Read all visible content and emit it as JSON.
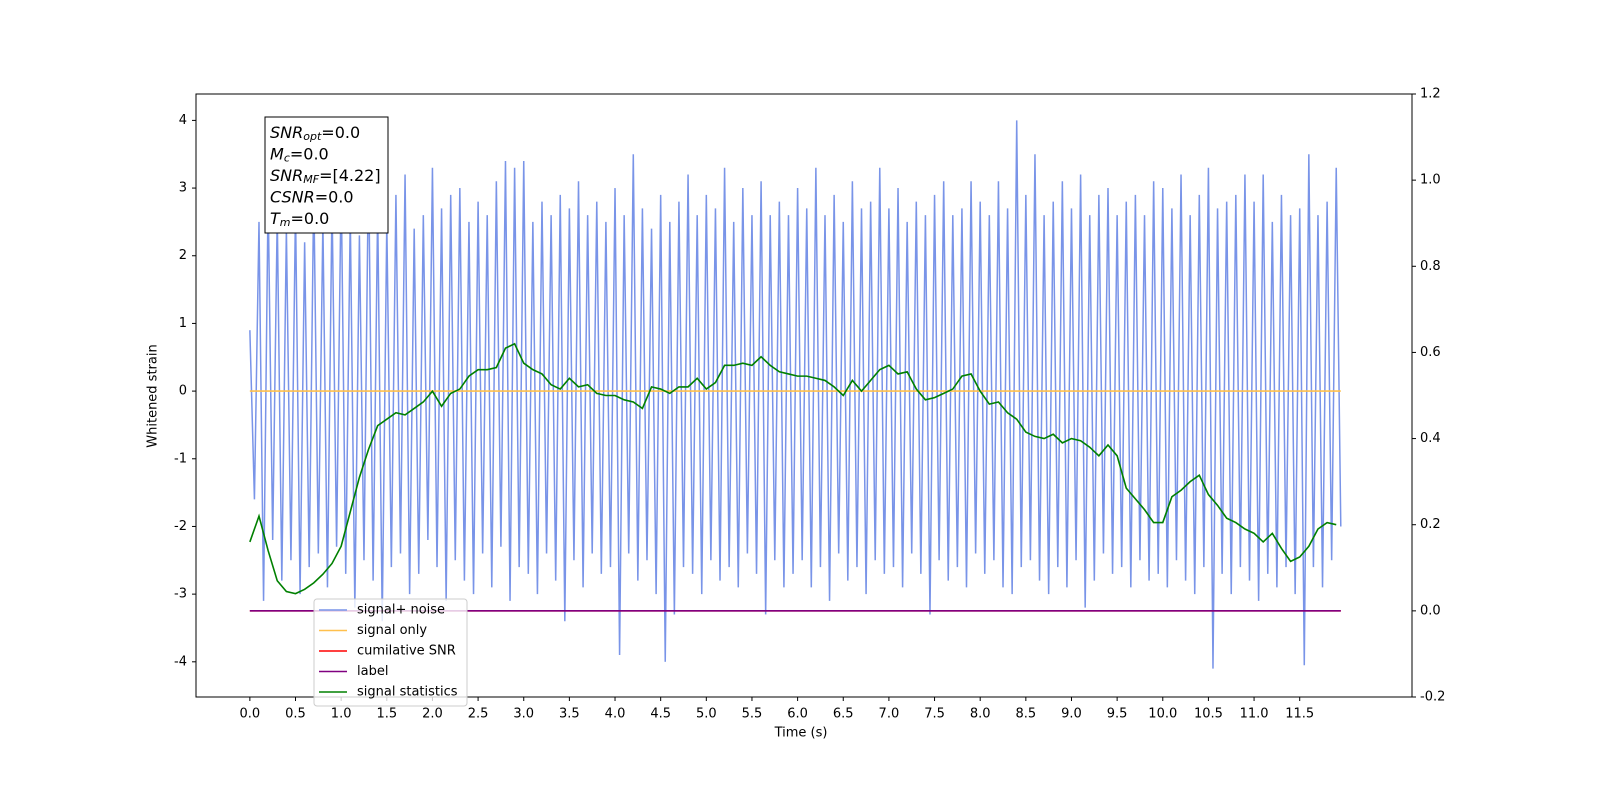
{
  "chart_data": {
    "type": "line",
    "xlabel": "Time (s)",
    "ylabel": "Whitened strain",
    "xlim": [
      -0.59,
      12.73
    ],
    "ylim": [
      -4.52,
      4.39
    ],
    "y2lim": [
      -0.2,
      1.2
    ],
    "xticks": [
      {
        "value": 0,
        "label": "0.0"
      },
      0.5,
      {
        "value": 1,
        "label": "1.0"
      },
      1.5,
      {
        "value": 2,
        "label": "2.0"
      },
      2.5,
      {
        "value": 3,
        "label": "3.0"
      },
      3.5,
      {
        "value": 4,
        "label": "4.0"
      },
      4.5,
      {
        "value": 5,
        "label": "5.0"
      },
      5.5,
      {
        "value": 6,
        "label": "6.0"
      },
      6.5,
      {
        "value": 7,
        "label": "7.0"
      },
      7.5,
      {
        "value": 8,
        "label": "8.0"
      },
      8.5,
      {
        "value": 9,
        "label": "9.0"
      },
      9.5,
      {
        "value": 10,
        "label": "10.0"
      },
      10.5,
      {
        "value": 11,
        "label": "11.0"
      },
      11.5
    ],
    "yticks": [
      -4,
      -3,
      -2,
      -1,
      0,
      1,
      2,
      3,
      4
    ],
    "y2ticks": [
      -0.2,
      {
        "value": 0,
        "label": "0.0"
      },
      0.2,
      0.4,
      0.6,
      0.8,
      {
        "value": 1,
        "label": "1.0"
      },
      1.2
    ],
    "legend": "lower left",
    "annotation": [
      {
        "main": "SNR",
        "sub": "opt",
        "text": "=0.0"
      },
      {
        "main": "M",
        "sub": "c",
        "text": "=0.0"
      },
      {
        "main": "SNR",
        "sub": "MF",
        "text": "=[4.22]"
      },
      {
        "main": "CSNR",
        "sub": null,
        "text": "=0.0"
      },
      {
        "main": "T",
        "sub": "m",
        "text": "=0.0"
      }
    ],
    "series": [
      {
        "name": "signal+ noise",
        "color": "#7994e8",
        "axis": "y",
        "x": [
          0,
          0.05,
          0.1,
          0.15,
          0.2,
          0.25,
          0.3,
          0.35,
          0.4,
          0.45,
          0.5,
          0.55,
          0.6,
          0.65,
          0.7,
          0.75,
          0.8,
          0.85,
          0.9,
          0.95,
          1,
          1.05,
          1.1,
          1.15,
          1.2,
          1.25,
          1.3,
          1.35,
          1.4,
          1.45,
          1.5,
          1.55,
          1.6,
          1.65,
          1.7,
          1.75,
          1.8,
          1.85,
          1.9,
          1.95,
          2,
          2.05,
          2.1,
          2.15,
          2.2,
          2.25,
          2.3,
          2.35,
          2.4,
          2.45,
          2.5,
          2.55,
          2.6,
          2.65,
          2.7,
          2.75,
          2.8,
          2.85,
          2.9,
          2.95,
          3,
          3.05,
          3.1,
          3.15,
          3.2,
          3.25,
          3.3,
          3.35,
          3.4,
          3.45,
          3.5,
          3.55,
          3.6,
          3.65,
          3.7,
          3.75,
          3.8,
          3.85,
          3.9,
          3.95,
          4,
          4.05,
          4.1,
          4.15,
          4.2,
          4.25,
          4.3,
          4.35,
          4.4,
          4.45,
          4.5,
          4.55,
          4.6,
          4.65,
          4.7,
          4.75,
          4.8,
          4.85,
          4.9,
          4.95,
          5,
          5.05,
          5.1,
          5.15,
          5.2,
          5.25,
          5.3,
          5.35,
          5.4,
          5.45,
          5.5,
          5.55,
          5.6,
          5.65,
          5.7,
          5.75,
          5.8,
          5.85,
          5.9,
          5.95,
          6,
          6.05,
          6.1,
          6.15,
          6.2,
          6.25,
          6.3,
          6.35,
          6.4,
          6.45,
          6.5,
          6.55,
          6.6,
          6.65,
          6.7,
          6.75,
          6.8,
          6.85,
          6.9,
          6.95,
          7,
          7.05,
          7.1,
          7.15,
          7.2,
          7.25,
          7.3,
          7.35,
          7.4,
          7.45,
          7.5,
          7.55,
          7.6,
          7.65,
          7.7,
          7.75,
          7.8,
          7.85,
          7.9,
          7.95,
          8,
          8.05,
          8.1,
          8.15,
          8.2,
          8.25,
          8.3,
          8.35,
          8.4,
          8.45,
          8.5,
          8.55,
          8.6,
          8.65,
          8.7,
          8.75,
          8.8,
          8.85,
          8.9,
          8.95,
          9,
          9.05,
          9.1,
          9.15,
          9.2,
          9.25,
          9.3,
          9.35,
          9.4,
          9.45,
          9.5,
          9.55,
          9.6,
          9.65,
          9.7,
          9.75,
          9.8,
          9.85,
          9.9,
          9.95,
          10,
          10.05,
          10.1,
          10.15,
          10.2,
          10.25,
          10.3,
          10.35,
          10.4,
          10.45,
          10.5,
          10.55,
          10.6,
          10.65,
          10.7,
          10.75,
          10.8,
          10.85,
          10.9,
          10.95,
          11,
          11.05,
          11.1,
          11.15,
          11.2,
          11.25,
          11.3,
          11.35,
          11.4,
          11.45,
          11.5,
          11.55,
          11.6,
          11.65,
          11.7,
          11.75,
          11.8,
          11.85,
          11.9,
          11.95
        ],
        "values": [
          0.9,
          -1.6,
          2.5,
          -3.1,
          2.9,
          -2.2,
          2.6,
          -2.8,
          2.4,
          -2.5,
          2.7,
          -3.0,
          2.2,
          -2.6,
          3.0,
          -2.4,
          2.5,
          -2.9,
          2.8,
          -2.3,
          3.1,
          -2.7,
          2.6,
          -3.2,
          2.3,
          -2.5,
          3.4,
          -2.8,
          2.7,
          -3.4,
          2.5,
          -2.6,
          2.9,
          -2.4,
          3.2,
          -3.0,
          2.4,
          -2.7,
          2.6,
          -2.2,
          3.3,
          -2.6,
          2.7,
          -3.1,
          2.9,
          -2.5,
          3.0,
          -2.8,
          2.5,
          -3.0,
          2.8,
          -2.4,
          2.6,
          -2.9,
          3.1,
          -2.3,
          3.4,
          -3.1,
          3.3,
          -2.6,
          3.4,
          -2.7,
          2.5,
          -3.0,
          2.8,
          -2.4,
          2.6,
          -2.8,
          2.9,
          -3.4,
          2.7,
          -2.5,
          3.1,
          -2.9,
          2.6,
          -2.4,
          2.8,
          -2.7,
          2.5,
          -2.6,
          3.0,
          -3.9,
          2.6,
          -2.4,
          3.5,
          -2.8,
          2.7,
          -2.5,
          2.4,
          -3.0,
          2.9,
          -4.0,
          2.5,
          -3.3,
          2.8,
          -2.6,
          3.2,
          -2.7,
          2.6,
          -3.0,
          2.9,
          -2.5,
          2.7,
          -2.8,
          3.3,
          -2.6,
          2.5,
          -2.9,
          3.0,
          -2.4,
          2.6,
          -2.7,
          3.1,
          -3.3,
          2.6,
          -2.5,
          2.8,
          -2.9,
          2.6,
          -2.7,
          3.0,
          -2.5,
          2.7,
          -2.9,
          3.3,
          -2.6,
          2.6,
          -3.1,
          2.9,
          -2.4,
          2.5,
          -2.8,
          3.1,
          -2.6,
          2.7,
          -3.0,
          2.8,
          -2.5,
          3.3,
          -2.7,
          2.7,
          -2.6,
          3.0,
          -2.9,
          2.5,
          -2.4,
          2.8,
          -2.7,
          2.6,
          -3.3,
          2.9,
          -2.5,
          3.1,
          -2.8,
          2.6,
          -2.6,
          2.7,
          -2.9,
          3.1,
          -2.4,
          2.8,
          -2.7,
          2.6,
          -2.5,
          3.1,
          -2.9,
          2.7,
          -3.0,
          4.0,
          -2.6,
          2.9,
          -2.5,
          3.5,
          -2.8,
          2.6,
          -3.0,
          2.8,
          -2.6,
          3.1,
          -2.9,
          2.7,
          -2.5,
          3.2,
          -3.2,
          2.6,
          -2.8,
          2.9,
          -2.4,
          3.0,
          -2.7,
          2.6,
          -2.6,
          2.8,
          -2.9,
          2.9,
          -2.5,
          2.6,
          -2.8,
          3.1,
          -2.7,
          3.0,
          -2.9,
          2.7,
          -2.5,
          3.2,
          -2.8,
          2.6,
          -3.0,
          2.9,
          -2.6,
          3.3,
          -4.1,
          2.7,
          -2.7,
          2.8,
          -3.0,
          2.9,
          -2.6,
          3.2,
          -2.8,
          2.8,
          -3.1,
          3.2,
          -2.7,
          2.5,
          -2.9,
          2.9,
          -2.6,
          2.6,
          -3.0,
          2.7,
          -4.05,
          3.5,
          -2.6,
          2.6,
          -2.9,
          2.8,
          -2.5,
          3.3,
          -2.0
        ]
      },
      {
        "name": "signal only",
        "color": "#ffc04d",
        "axis": "y",
        "x": [
          0,
          11.95
        ],
        "values": [
          0,
          0
        ]
      },
      {
        "name": "cumilative SNR",
        "color": "#ff0000",
        "axis": "y2",
        "x": [
          0,
          11.95
        ],
        "values": [
          0,
          0
        ]
      },
      {
        "name": "label",
        "color": "#800080",
        "axis": "y2",
        "x": [
          0,
          11.95
        ],
        "values": [
          0,
          0
        ]
      },
      {
        "name": "signal statistics",
        "color": "#008000",
        "axis": "y2",
        "x": [
          0,
          0.1,
          0.2,
          0.3,
          0.4,
          0.5,
          0.6,
          0.7,
          0.8,
          0.9,
          1,
          1.1,
          1.2,
          1.3,
          1.4,
          1.5,
          1.6,
          1.7,
          1.8,
          1.9,
          2,
          2.1,
          2.2,
          2.3,
          2.4,
          2.5,
          2.6,
          2.7,
          2.8,
          2.9,
          3,
          3.1,
          3.2,
          3.3,
          3.4,
          3.5,
          3.6,
          3.7,
          3.8,
          3.9,
          4,
          4.1,
          4.2,
          4.3,
          4.4,
          4.5,
          4.6,
          4.7,
          4.8,
          4.9,
          5,
          5.1,
          5.2,
          5.3,
          5.4,
          5.5,
          5.6,
          5.7,
          5.8,
          5.9,
          6,
          6.1,
          6.2,
          6.3,
          6.4,
          6.5,
          6.6,
          6.7,
          6.8,
          6.9,
          7,
          7.1,
          7.2,
          7.3,
          7.4,
          7.5,
          7.6,
          7.7,
          7.8,
          7.9,
          8,
          8.1,
          8.2,
          8.3,
          8.4,
          8.5,
          8.6,
          8.7,
          8.8,
          8.9,
          9,
          9.1,
          9.2,
          9.3,
          9.4,
          9.5,
          9.6,
          9.7,
          9.8,
          9.9,
          10,
          10.1,
          10.2,
          10.3,
          10.4,
          10.5,
          10.6,
          10.7,
          10.8,
          10.9,
          11,
          11.1,
          11.2,
          11.3,
          11.4,
          11.5,
          11.6,
          11.7,
          11.8,
          11.9
        ],
        "values": [
          0.16,
          0.22,
          0.14,
          0.07,
          0.045,
          0.04,
          0.05,
          0.065,
          0.085,
          0.11,
          0.15,
          0.23,
          0.31,
          0.375,
          0.43,
          0.445,
          0.46,
          0.455,
          0.47,
          0.485,
          0.51,
          0.475,
          0.505,
          0.515,
          0.545,
          0.56,
          0.56,
          0.565,
          0.61,
          0.62,
          0.575,
          0.56,
          0.55,
          0.525,
          0.515,
          0.54,
          0.52,
          0.525,
          0.505,
          0.5,
          0.5,
          0.49,
          0.485,
          0.47,
          0.52,
          0.515,
          0.505,
          0.52,
          0.52,
          0.54,
          0.515,
          0.53,
          0.57,
          0.57,
          0.575,
          0.57,
          0.59,
          0.57,
          0.555,
          0.55,
          0.545,
          0.545,
          0.54,
          0.535,
          0.52,
          0.5,
          0.535,
          0.51,
          0.535,
          0.56,
          0.57,
          0.55,
          0.555,
          0.515,
          0.49,
          0.495,
          0.505,
          0.515,
          0.545,
          0.55,
          0.51,
          0.48,
          0.485,
          0.46,
          0.445,
          0.415,
          0.405,
          0.4,
          0.41,
          0.39,
          0.4,
          0.395,
          0.38,
          0.36,
          0.385,
          0.36,
          0.285,
          0.26,
          0.235,
          0.205,
          0.205,
          0.265,
          0.28,
          0.3,
          0.315,
          0.27,
          0.245,
          0.215,
          0.205,
          0.19,
          0.18,
          0.16,
          0.18,
          0.145,
          0.115,
          0.125,
          0.15,
          0.19,
          0.205,
          0.2
        ]
      }
    ]
  }
}
